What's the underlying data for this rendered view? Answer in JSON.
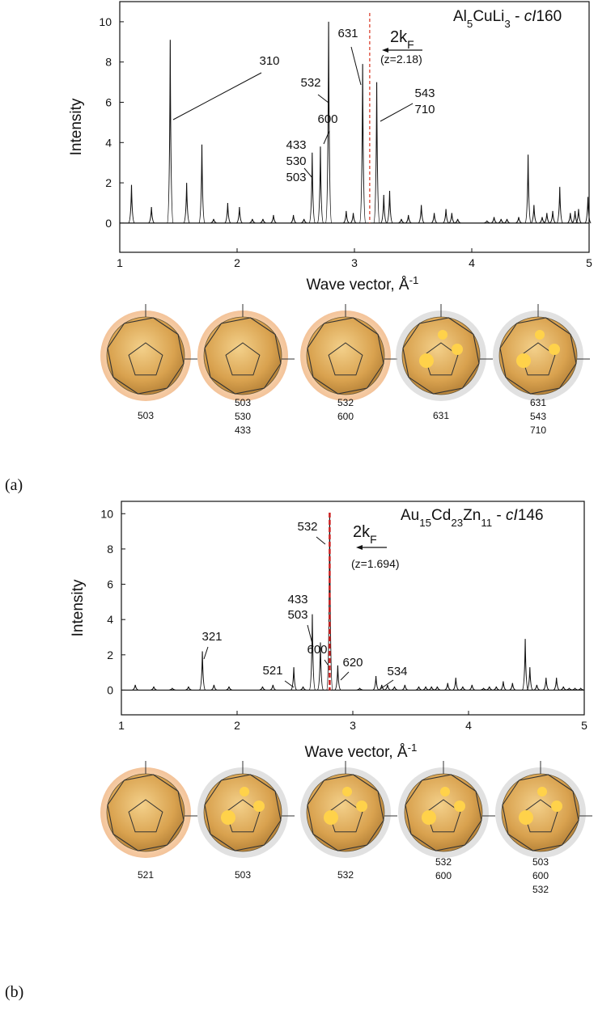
{
  "chart_data": [
    {
      "type": "stem",
      "title": [
        {
          "text": "Al"
        },
        {
          "text": "5",
          "style": "sub"
        },
        {
          "text": "CuLi"
        },
        {
          "text": "3",
          "style": "sub"
        },
        {
          "text": " - "
        },
        {
          "text": "cI",
          "style": "italic"
        },
        {
          "text": "160"
        }
      ],
      "xlabel": [
        {
          "text": "Wave vector, Å"
        },
        {
          "text": "-1",
          "style": "sup"
        }
      ],
      "ylabel": "Intensity",
      "x": [
        1.1,
        1.27,
        1.43,
        1.57,
        1.7,
        1.8,
        1.92,
        2.02,
        2.13,
        2.22,
        2.31,
        2.48,
        2.57,
        2.64,
        2.71,
        2.78,
        2.93,
        2.99,
        3.07,
        3.19,
        3.25,
        3.3,
        3.4,
        3.46,
        3.57,
        3.68,
        3.78,
        3.83,
        3.88,
        4.13,
        4.19,
        4.25,
        4.3,
        4.4,
        4.48,
        4.53,
        4.6,
        4.64,
        4.69,
        4.75,
        4.84,
        4.88,
        4.91,
        4.99
      ],
      "values": [
        1.9,
        0.8,
        9.1,
        2.0,
        3.9,
        0.2,
        1.0,
        0.8,
        0.2,
        0.2,
        0.4,
        0.4,
        0.2,
        3.5,
        3.8,
        10.0,
        0.6,
        0.5,
        7.9,
        7.0,
        1.4,
        1.6,
        0.2,
        0.4,
        0.9,
        0.5,
        0.7,
        0.5,
        0.2,
        0.1,
        0.3,
        0.2,
        0.2,
        0.3,
        3.4,
        0.9,
        0.3,
        0.5,
        0.6,
        1.8,
        0.5,
        0.6,
        0.7,
        1.3
      ],
      "color": "#111111",
      "xlim": [
        1,
        5
      ],
      "xticks": [
        1,
        2,
        3,
        4,
        5
      ],
      "ylim": [
        -1.45,
        11
      ],
      "yticks": [
        0,
        2,
        4,
        6,
        8,
        10
      ],
      "marker": {
        "x": 3.13,
        "color": "#e05a4a",
        "label": [
          {
            "text": "2k"
          },
          {
            "text": "F",
            "style": "sub"
          }
        ],
        "note": "(z=2.18)"
      },
      "annotations": [
        [
          "310"
        ],
        [
          "433",
          "530",
          "503"
        ],
        [
          "600"
        ],
        [
          "532"
        ],
        [
          "631"
        ],
        [
          "543",
          "710"
        ]
      ]
    },
    {
      "type": "stem",
      "title": [
        {
          "text": "Au"
        },
        {
          "text": "15",
          "style": "sub"
        },
        {
          "text": "Cd"
        },
        {
          "text": "23",
          "style": "sub"
        },
        {
          "text": "Zn"
        },
        {
          "text": "11",
          "style": "sub"
        },
        {
          "text": " - "
        },
        {
          "text": "cI",
          "style": "italic"
        },
        {
          "text": "146"
        }
      ],
      "xlabel": [
        {
          "text": "Wave vector, Å"
        },
        {
          "text": "-1",
          "style": "sup"
        }
      ],
      "ylabel": "Intensity",
      "x": [
        1.12,
        1.28,
        1.44,
        1.58,
        1.7,
        1.8,
        1.93,
        2.22,
        2.31,
        2.49,
        2.57,
        2.65,
        2.72,
        2.8,
        2.87,
        3.06,
        3.2,
        3.25,
        3.3,
        3.36,
        3.45,
        3.57,
        3.63,
        3.68,
        3.73,
        3.82,
        3.89,
        3.95,
        4.03,
        4.13,
        4.18,
        4.24,
        4.3,
        4.38,
        4.49,
        4.53,
        4.59,
        4.67,
        4.76,
        4.82,
        4.87,
        4.92,
        4.97
      ],
      "values": [
        0.3,
        0.2,
        0.1,
        0.2,
        2.2,
        0.3,
        0.2,
        0.2,
        0.3,
        1.3,
        0.2,
        4.3,
        2.7,
        10.0,
        1.4,
        0.1,
        0.8,
        0.3,
        0.3,
        0.2,
        0.3,
        0.2,
        0.2,
        0.2,
        0.2,
        0.4,
        0.7,
        0.2,
        0.3,
        0.1,
        0.2,
        0.2,
        0.5,
        0.4,
        2.9,
        1.3,
        0.3,
        0.7,
        0.7,
        0.2,
        0.1,
        0.1,
        0.1
      ],
      "color": "#111111",
      "xlim": [
        1,
        5
      ],
      "xticks": [
        1,
        2,
        3,
        4,
        5
      ],
      "ylim": [
        -1.4,
        10.7
      ],
      "yticks": [
        0,
        2,
        4,
        6,
        8,
        10
      ],
      "marker": {
        "x": 2.8,
        "color": "#cc1f1f",
        "label": [
          {
            "text": "2k"
          },
          {
            "text": "F",
            "style": "sub"
          }
        ],
        "note": "(z=1.694)"
      },
      "annotations": [
        [
          "321"
        ],
        [
          "521"
        ],
        [
          "433",
          "503"
        ],
        [
          "600"
        ],
        [
          "532"
        ],
        [
          "620"
        ],
        [
          "534"
        ]
      ]
    }
  ],
  "panels": [
    {
      "label": "(a)",
      "captions": [
        [
          "503"
        ],
        [
          "503",
          "530",
          "433"
        ],
        [
          "532",
          "600"
        ],
        [
          "631"
        ],
        [
          "631",
          "543",
          "710"
        ]
      ]
    },
    {
      "label": "(b)",
      "captions": [
        [
          "521"
        ],
        [
          "503"
        ],
        [
          "532"
        ],
        [
          "532",
          "600"
        ],
        [
          "503",
          "600",
          "532"
        ]
      ]
    }
  ]
}
